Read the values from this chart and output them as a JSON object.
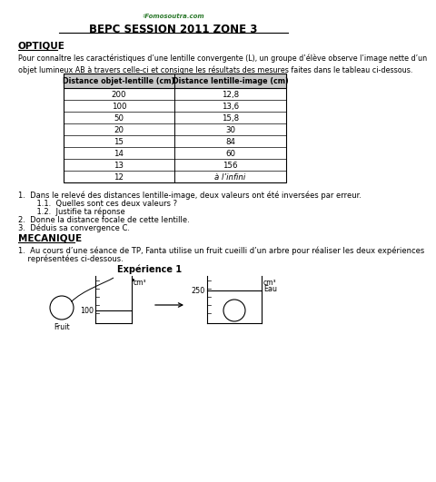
{
  "title": "BEPC SESSION 2011 ZONE 3",
  "website": "♯Fomosoutra.com",
  "section1_title": "OPTIQUE",
  "paragraph1": "Pour connaître les caractéristiques d’une lentille convergente (L), un groupe d’élève observe l’image nette d’un\nobjet lumineux AB à travers celle-ci et consigne les résultats des mesures faites dans le tableau ci-dessous.",
  "table_header": [
    "Distance objet-lentille (cm)",
    "Distance lentille-image (cm)"
  ],
  "table_data": [
    [
      "200",
      "12,8"
    ],
    [
      "100",
      "13,6"
    ],
    [
      "50",
      "15,8"
    ],
    [
      "20",
      "30"
    ],
    [
      "15",
      "84"
    ],
    [
      "14",
      "60"
    ],
    [
      "13",
      "156"
    ],
    [
      "12",
      "à l’infini"
    ]
  ],
  "q1": "1.  Dans le relevé des distances lentille-image, deux valeurs ont été inversées par erreur.",
  "q11": "    1.1.  Quelles sont ces deux valeurs ?",
  "q12": "    1.2.  Justifie ta réponse",
  "q2": "2.  Donne la distance focale de cette lentille.",
  "q3": "3.  Déduis sa convergence C.",
  "section2_title": "MECANIQUE",
  "paragraph2a": "1.  Au cours d’une séance de TP, Fanta utilise un fruit cueilli d’un arbre pour réaliser les deux expériences",
  "paragraph2b": "    représentées ci-dessous.",
  "experience_title": "Expérience 1",
  "grad1_label": "cm³",
  "grad1_value": "100",
  "grad2_label": "cm³",
  "grad2_value": "250",
  "grad2_sublabel": "Eau",
  "fruit_label": "Fruit",
  "website_color": "#2d7a2d",
  "bg_color": "#ffffff",
  "text_color": "#000000",
  "table_header_bg": "#c8c8c8"
}
